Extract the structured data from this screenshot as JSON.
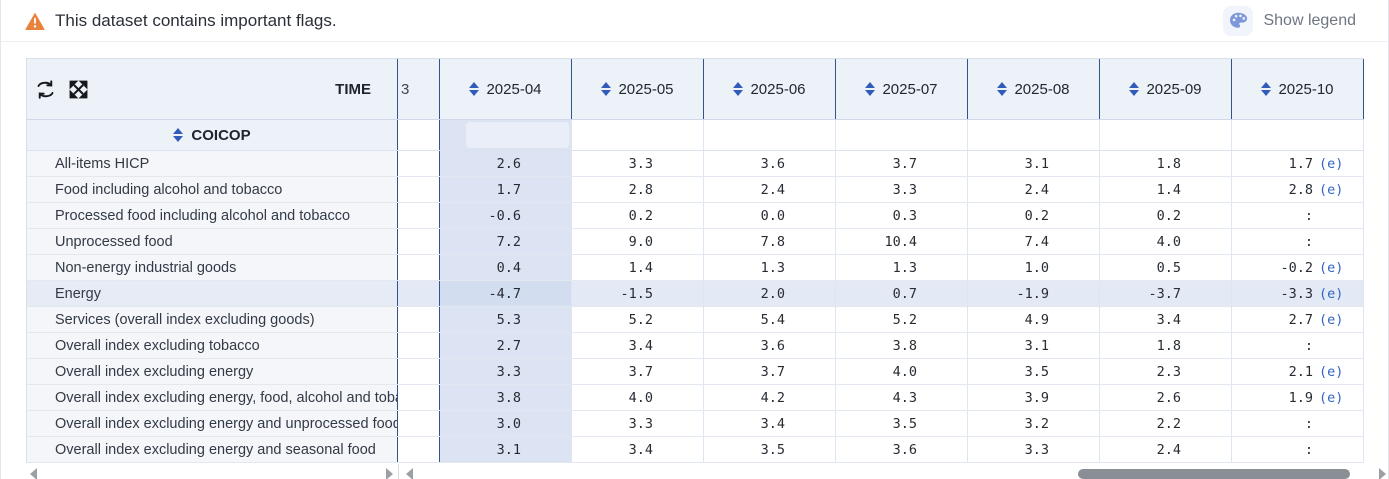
{
  "banner": {
    "warning_text": "This dataset contains important flags.",
    "show_legend_label": "Show legend"
  },
  "table": {
    "time_label": "TIME",
    "coicop_label": "COICOP",
    "truncated_column_label": "3",
    "columns": [
      "2025-04",
      "2025-05",
      "2025-06",
      "2025-07",
      "2025-08",
      "2025-09",
      "2025-10"
    ],
    "rows": [
      {
        "label": "All-items HICP",
        "values": [
          "2.6",
          "3.3",
          "3.6",
          "3.7",
          "3.1",
          "1.8",
          "1.7"
        ],
        "flags": [
          "",
          "",
          "",
          "",
          "",
          "",
          "(e)"
        ]
      },
      {
        "label": "Food including alcohol and tobacco",
        "values": [
          "1.7",
          "2.8",
          "2.4",
          "3.3",
          "2.4",
          "1.4",
          "2.8"
        ],
        "flags": [
          "",
          "",
          "",
          "",
          "",
          "",
          "(e)"
        ]
      },
      {
        "label": "Processed food including alcohol and tobacco",
        "values": [
          "-0.6",
          "0.2",
          "0.0",
          "0.3",
          "0.2",
          "0.2",
          ":"
        ],
        "flags": [
          "",
          "",
          "",
          "",
          "",
          "",
          ""
        ]
      },
      {
        "label": "Unprocessed food",
        "values": [
          "7.2",
          "9.0",
          "7.8",
          "10.4",
          "7.4",
          "4.0",
          ":"
        ],
        "flags": [
          "",
          "",
          "",
          "",
          "",
          "",
          ""
        ]
      },
      {
        "label": "Non-energy industrial goods",
        "values": [
          "0.4",
          "1.4",
          "1.3",
          "1.3",
          "1.0",
          "0.5",
          "-0.2"
        ],
        "flags": [
          "",
          "",
          "",
          "",
          "",
          "",
          "(e)"
        ]
      },
      {
        "label": "Energy",
        "values": [
          "-4.7",
          "-1.5",
          "2.0",
          "0.7",
          "-1.9",
          "-3.7",
          "-3.3"
        ],
        "flags": [
          "",
          "",
          "",
          "",
          "",
          "",
          "(e)"
        ],
        "highlighted": true
      },
      {
        "label": "Services (overall index excluding goods)",
        "values": [
          "5.3",
          "5.2",
          "5.4",
          "5.2",
          "4.9",
          "3.4",
          "2.7"
        ],
        "flags": [
          "",
          "",
          "",
          "",
          "",
          "",
          "(e)"
        ]
      },
      {
        "label": "Overall index excluding tobacco",
        "values": [
          "2.7",
          "3.4",
          "3.6",
          "3.8",
          "3.1",
          "1.8",
          ":"
        ],
        "flags": [
          "",
          "",
          "",
          "",
          "",
          "",
          ""
        ]
      },
      {
        "label": "Overall index excluding energy",
        "values": [
          "3.3",
          "3.7",
          "3.7",
          "4.0",
          "3.5",
          "2.3",
          "2.1"
        ],
        "flags": [
          "",
          "",
          "",
          "",
          "",
          "",
          "(e)"
        ]
      },
      {
        "label": "Overall index excluding energy, food, alcohol and toba…",
        "values": [
          "3.8",
          "4.0",
          "4.2",
          "4.3",
          "3.9",
          "2.6",
          "1.9"
        ],
        "flags": [
          "",
          "",
          "",
          "",
          "",
          "",
          "(e)"
        ]
      },
      {
        "label": "Overall index excluding energy and unprocessed food",
        "values": [
          "3.0",
          "3.3",
          "3.4",
          "3.5",
          "3.2",
          "2.2",
          ":"
        ],
        "flags": [
          "",
          "",
          "",
          "",
          "",
          "",
          ""
        ]
      },
      {
        "label": "Overall index excluding energy and seasonal food",
        "values": [
          "3.1",
          "3.4",
          "3.5",
          "3.6",
          "3.3",
          "2.4",
          ":"
        ],
        "flags": [
          "",
          "",
          "",
          "",
          "",
          "",
          ""
        ]
      }
    ]
  },
  "icons": {
    "warning": "warning-triangle-icon",
    "palette": "palette-icon",
    "pivot": "pivot-swap-icon",
    "expand": "expand-arrows-icon",
    "sort": "sort-updown-icon"
  },
  "colors": {
    "header_bg": "#edf1f8",
    "frozen_border": "#33538e",
    "sort_arrow": "#2e5cb8",
    "column_highlight": "#dce4f3",
    "row_highlight": "#e3eaf6",
    "flag_blue": "#3465c4",
    "warning_orange": "#e8823c",
    "scroll_thumb": "#8a8f96"
  }
}
